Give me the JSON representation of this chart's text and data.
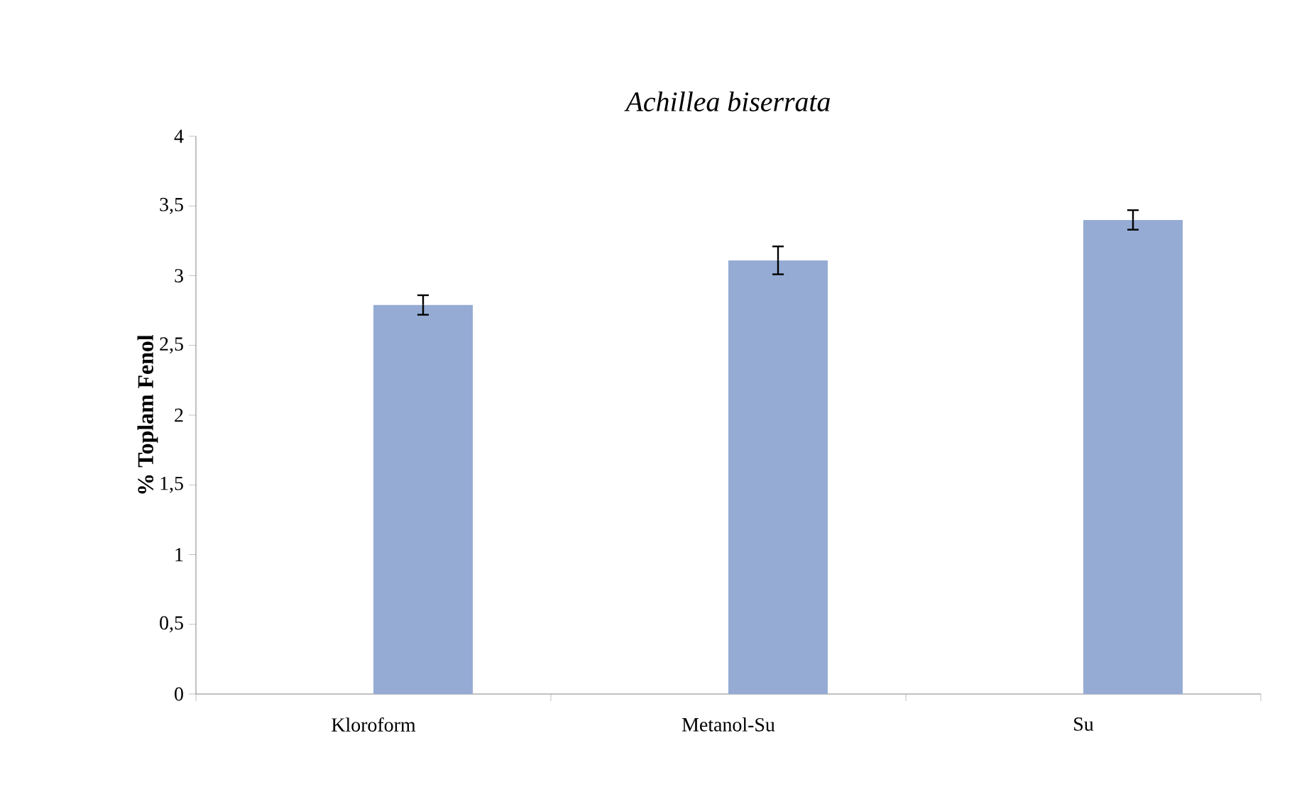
{
  "chart_data": {
    "type": "bar",
    "title": "Achillea biserrata",
    "ylabel": "%  Toplam Fenol",
    "categories": [
      "Kloroform",
      "Metanol-Su",
      "Su"
    ],
    "values": [
      2.79,
      3.11,
      3.4
    ],
    "errors": [
      0.07,
      0.1,
      0.07
    ],
    "color": "#95abd4",
    "ylim": [
      0,
      4
    ],
    "yticks": [
      0,
      {
        "value": 0.5,
        "label": "0,5"
      },
      1,
      {
        "value": 1.5,
        "label": "1,5"
      },
      2,
      {
        "value": 2.5,
        "label": "2,5"
      },
      3,
      {
        "value": 3.5,
        "label": "3,5"
      },
      4
    ],
    "grid": false
  }
}
